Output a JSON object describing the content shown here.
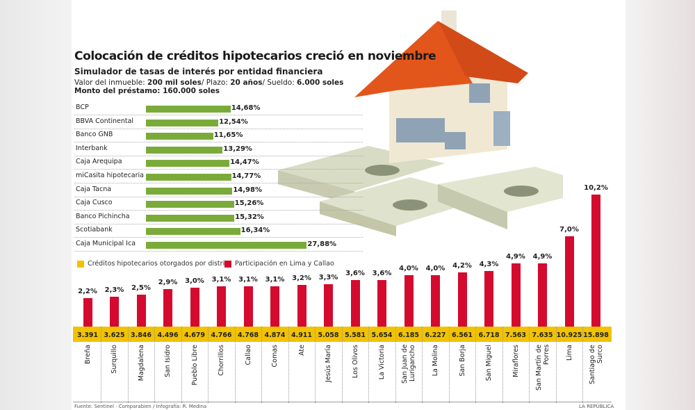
{
  "title": "Colocación de créditos hipotecarios creció en noviembre",
  "subtitle": "Simulador de tasas de interés por entidad financiera",
  "params": {
    "l1": "Valor del inmueble: ",
    "v1": "200 mil soles",
    "l2": "/ Plazo: ",
    "v2": "20 años",
    "l3": "/ Sueldo: ",
    "v3": "6.000 soles"
  },
  "monto": "Monto del préstamo: 160.000 soles",
  "chart_data": [
    {
      "type": "bar",
      "orientation": "horizontal",
      "title": "Simulador de tasas de interés por entidad financiera",
      "color": "#7aab3a",
      "categories": [
        "BCP",
        "BBVA Continental",
        "Banco GNB",
        "Interbank",
        "Caja Arequipa",
        "miCasita hipotecaria",
        "Caja Tacna",
        "Caja Cusco",
        "Banco Pichincha",
        "Scotiabank",
        "Caja Municipal Ica"
      ],
      "values": [
        14.68,
        12.54,
        11.65,
        13.29,
        14.47,
        14.77,
        14.98,
        15.26,
        15.32,
        16.34,
        27.88
      ],
      "labels": [
        "14,68%",
        "12,54%",
        "11,65%",
        "13,29%",
        "14,47%",
        "14,77%",
        "14,98%",
        "15,26%",
        "15,32%",
        "16,34%",
        "27,88%"
      ]
    },
    {
      "type": "bar",
      "legend": "top-left",
      "categories": [
        "Breña",
        "Surquillo",
        "Magdalena",
        "San Isidro",
        "Pueblo Libre",
        "Chorrillos",
        "Callao",
        "Comas",
        "Ate",
        "Jesús María",
        "Los Olivos",
        "La Victoria",
        "San Juan de Lurigancho",
        "La Molina",
        "San Borja",
        "San Miguel",
        "Miraflores",
        "San Martín de Porres",
        "Lima",
        "Santiago de Surco"
      ],
      "series": [
        {
          "name": "Participación en Lima y Callao",
          "color": "#d40a2e",
          "values": [
            2.2,
            2.3,
            2.5,
            2.9,
            3.0,
            3.1,
            3.1,
            3.1,
            3.2,
            3.3,
            3.6,
            3.6,
            4.0,
            4.0,
            4.2,
            4.3,
            4.9,
            4.9,
            7.0,
            10.2
          ],
          "labels": [
            "2,2%",
            "2,3%",
            "2,5%",
            "2,9%",
            "3,0%",
            "3,1%",
            "3,1%",
            "3,1%",
            "3,2%",
            "3,3%",
            "3,6%",
            "3,6%",
            "4,0%",
            "4,0%",
            "4,2%",
            "4,3%",
            "4,9%",
            "4,9%",
            "7,0%",
            "10,2%"
          ]
        },
        {
          "name": "Créditos hipotecarios otorgados por distrito",
          "color": "#f2c200",
          "values": [
            3391,
            3625,
            3846,
            4496,
            4679,
            4766,
            4768,
            4874,
            4911,
            5058,
            5581,
            5654,
            6185,
            6227,
            6561,
            6718,
            7563,
            7635,
            10925,
            15898
          ],
          "labels": [
            "3.391",
            "3.625",
            "3.846",
            "4.496",
            "4.679",
            "4.766",
            "4.768",
            "4.874",
            "4.911",
            "5.058",
            "5.581",
            "5.654",
            "6.185",
            "6.227",
            "6.561",
            "6.718",
            "7.563",
            "7.635",
            "10.925",
            "15.898"
          ]
        }
      ]
    }
  ],
  "footer": {
    "source": "Fuente: Sentinel · Comparabien / Infografía: R. Medina",
    "brand": "LA REPÚBLICA"
  }
}
